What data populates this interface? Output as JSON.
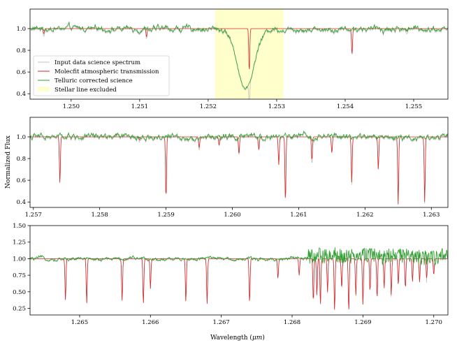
{
  "colors": {
    "input": "#c0c0c0",
    "model": "#d62728",
    "corrected": "#2ca02c",
    "excluded": "#ffffcc"
  },
  "figure": {
    "ylabel": "Normalized Flux",
    "xlabel": "Wavelength ($\\mu m$)"
  },
  "chart_data": [
    {
      "type": "line",
      "xlim": [
        1.2494,
        1.2555
      ],
      "ylim": [
        0.35,
        1.18
      ],
      "xticks": [
        "1.250",
        "1.251",
        "1.252",
        "1.253",
        "1.254",
        "1.255"
      ],
      "yticks": [
        "0.4",
        "0.6",
        "0.8",
        "1.0"
      ],
      "excluded_region": [
        1.2521,
        1.2531
      ],
      "absorption_lines": [
        {
          "x": 1.2496,
          "depth": 0.05
        },
        {
          "x": 1.2511,
          "depth": 0.08
        },
        {
          "x": 1.2526,
          "depth": 0.4
        },
        {
          "x": 1.2541,
          "depth": 0.24
        },
        {
          "x": 1.2549,
          "depth": 0.02
        }
      ],
      "stellar_line": {
        "x": 1.25255,
        "depth": 0.55
      },
      "legend": {
        "placement": "lower-left",
        "entries": [
          {
            "series": "input",
            "label": "Input data science spectrum"
          },
          {
            "series": "model",
            "label": "Molecfit atmospheric transmission"
          },
          {
            "series": "corrected",
            "label": "Telluric corrected science"
          },
          {
            "series": "excluded",
            "label": "Stellar line excluded"
          }
        ]
      }
    },
    {
      "type": "line",
      "xlim": [
        1.25695,
        1.26325
      ],
      "ylim": [
        0.35,
        1.18
      ],
      "xticks": [
        "1.257",
        "1.258",
        "1.259",
        "1.260",
        "1.261",
        "1.262",
        "1.263"
      ],
      "yticks": [
        "0.4",
        "0.6",
        "0.8",
        "1.0"
      ],
      "absorption_lines": [
        {
          "x": 1.2574,
          "depth": 0.43
        },
        {
          "x": 1.2586,
          "depth": 0.03
        },
        {
          "x": 1.259,
          "depth": 0.57
        },
        {
          "x": 1.2595,
          "depth": 0.1
        },
        {
          "x": 1.2598,
          "depth": 0.08
        },
        {
          "x": 1.2601,
          "depth": 0.16
        },
        {
          "x": 1.2604,
          "depth": 0.12
        },
        {
          "x": 1.2607,
          "depth": 0.26
        },
        {
          "x": 1.2608,
          "depth": 0.6
        },
        {
          "x": 1.2612,
          "depth": 0.22
        },
        {
          "x": 1.2615,
          "depth": 0.15
        },
        {
          "x": 1.2618,
          "depth": 0.42
        },
        {
          "x": 1.2622,
          "depth": 0.3
        },
        {
          "x": 1.2625,
          "depth": 0.62
        },
        {
          "x": 1.2629,
          "depth": 0.6
        }
      ]
    },
    {
      "type": "line",
      "xlim": [
        1.2643,
        1.2702
      ],
      "ylim": [
        0.15,
        1.5
      ],
      "xticks": [
        "1.265",
        "1.266",
        "1.267",
        "1.268",
        "1.269",
        "1.270"
      ],
      "yticks": [
        "0.25",
        "0.50",
        "0.75",
        "1.00",
        "1.25",
        "1.50"
      ],
      "absorption_lines": [
        {
          "x": 1.2648,
          "depth": 0.63
        },
        {
          "x": 1.2651,
          "depth": 0.67
        },
        {
          "x": 1.2656,
          "depth": 0.63
        },
        {
          "x": 1.2659,
          "depth": 0.68
        },
        {
          "x": 1.266,
          "depth": 0.45
        },
        {
          "x": 1.2665,
          "depth": 0.65
        },
        {
          "x": 1.2668,
          "depth": 0.68
        },
        {
          "x": 1.2674,
          "depth": 0.67
        },
        {
          "x": 1.2678,
          "depth": 0.3
        },
        {
          "x": 1.2681,
          "depth": 0.25
        },
        {
          "x": 1.2683,
          "depth": 0.65
        },
        {
          "x": 1.26835,
          "depth": 0.55
        },
        {
          "x": 1.2684,
          "depth": 0.7
        },
        {
          "x": 1.2685,
          "depth": 0.5
        },
        {
          "x": 1.2686,
          "depth": 0.78
        },
        {
          "x": 1.2687,
          "depth": 0.45
        },
        {
          "x": 1.2688,
          "depth": 0.8
        },
        {
          "x": 1.2689,
          "depth": 0.55
        },
        {
          "x": 1.269,
          "depth": 0.7
        },
        {
          "x": 1.2691,
          "depth": 0.5
        },
        {
          "x": 1.2692,
          "depth": 0.6
        },
        {
          "x": 1.2693,
          "depth": 0.45
        },
        {
          "x": 1.2694,
          "depth": 0.55
        },
        {
          "x": 1.2695,
          "depth": 0.4
        },
        {
          "x": 1.2696,
          "depth": 0.45
        },
        {
          "x": 1.2697,
          "depth": 0.35
        },
        {
          "x": 1.2698,
          "depth": 0.35
        },
        {
          "x": 1.2699,
          "depth": 0.3
        },
        {
          "x": 1.27,
          "depth": 0.25
        }
      ]
    }
  ]
}
